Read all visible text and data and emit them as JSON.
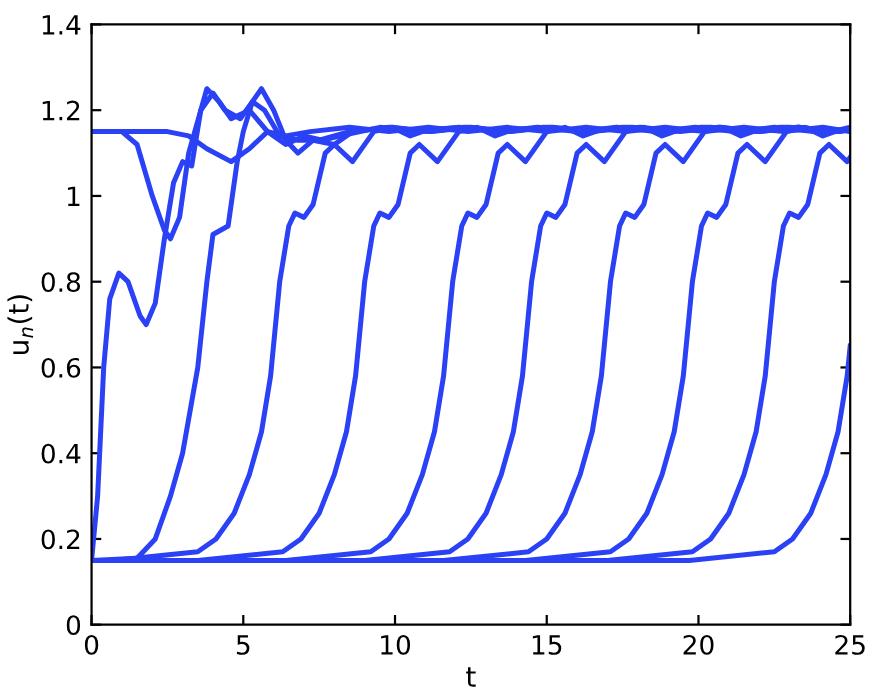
{
  "chart_data": {
    "type": "line",
    "xlabel": "t",
    "ylabel": "u$_{n}$(t)",
    "xlim": [
      0,
      25
    ],
    "ylim": [
      0,
      1.4
    ],
    "xticks": [
      0,
      5,
      10,
      15,
      20,
      25
    ],
    "yticks": [
      0,
      0.2,
      0.4,
      0.6,
      0.8,
      1,
      1.2,
      1.4
    ],
    "grid": false,
    "legend": false,
    "marker": "none",
    "line_style": "solid",
    "series": [
      {
        "color": "#2b41f5",
        "x": [
          0,
          1.0,
          1.5,
          2.0,
          2.4,
          2.6,
          2.9,
          3.2,
          3.6,
          4.0,
          4.4,
          4.9,
          5.3,
          5.7,
          6.2,
          6.8,
          7.5,
          8.5,
          9.8,
          11.1,
          12.4,
          13.7,
          15.0,
          16.3,
          17.6,
          18.9,
          20.2,
          21.5,
          22.8,
          24.1,
          25
        ],
        "values": [
          1.15,
          1.15,
          1.12,
          1.0,
          0.92,
          0.9,
          0.95,
          1.1,
          1.2,
          1.24,
          1.2,
          1.18,
          1.22,
          1.2,
          1.14,
          1.13,
          1.13,
          1.15,
          1.16,
          1.15,
          1.16,
          1.15,
          1.16,
          1.15,
          1.16,
          1.15,
          1.16,
          1.15,
          1.16,
          1.15,
          1.155
        ]
      },
      {
        "color": "#2b41f5",
        "x": [
          0,
          2.5,
          3.2,
          3.8,
          4.6,
          5.2,
          5.8,
          6.4,
          7.2,
          8.5,
          9.8,
          11.1,
          12.4,
          13.7,
          15.0,
          16.3,
          17.6,
          18.9,
          20.2,
          21.5,
          22.8,
          24.1,
          25
        ],
        "values": [
          1.15,
          1.15,
          1.14,
          1.11,
          1.08,
          1.11,
          1.15,
          1.14,
          1.15,
          1.16,
          1.15,
          1.16,
          1.15,
          1.16,
          1.15,
          1.16,
          1.15,
          1.16,
          1.15,
          1.16,
          1.15,
          1.16,
          1.15
        ]
      },
      {
        "color": "#2b41f5",
        "x": [
          0,
          0.2,
          0.4,
          0.6,
          0.9,
          1.2,
          1.6,
          1.8,
          2.1,
          2.4,
          2.7,
          3.0,
          3.3,
          3.6,
          3.8,
          4.2,
          4.6,
          5.2,
          5.8,
          6.4,
          7.0,
          7.6,
          8.2,
          9.5,
          10.8,
          12.1,
          13.4,
          14.7,
          16.0,
          17.3,
          18.6,
          19.9,
          21.2,
          22.5,
          23.8,
          25
        ],
        "values": [
          0.15,
          0.3,
          0.6,
          0.76,
          0.82,
          0.8,
          0.72,
          0.7,
          0.75,
          0.9,
          1.03,
          1.08,
          1.07,
          1.2,
          1.25,
          1.22,
          1.18,
          1.2,
          1.15,
          1.12,
          1.14,
          1.13,
          1.14,
          1.16,
          1.15,
          1.16,
          1.15,
          1.16,
          1.15,
          1.16,
          1.15,
          1.16,
          1.15,
          1.16,
          1.15,
          1.155
        ]
      },
      {
        "color": "#2b41f5",
        "x": [
          0,
          1.5,
          2.1,
          2.6,
          3.0,
          3.5,
          3.8,
          4.0,
          4.5,
          4.8,
          5.0,
          5.3,
          5.6,
          6.0,
          6.4,
          6.8,
          7.3,
          8.0,
          8.6,
          9.9,
          11.2,
          12.5,
          13.8,
          15.1,
          16.4,
          17.7,
          19.0,
          20.3,
          21.6,
          22.9,
          24.2,
          25
        ],
        "values": [
          0.15,
          0.155,
          0.2,
          0.3,
          0.4,
          0.6,
          0.8,
          0.91,
          0.93,
          1.08,
          1.15,
          1.22,
          1.25,
          1.2,
          1.13,
          1.1,
          1.13,
          1.12,
          1.15,
          1.16,
          1.15,
          1.16,
          1.15,
          1.16,
          1.15,
          1.16,
          1.15,
          1.16,
          1.15,
          1.16,
          1.15,
          1.155
        ]
      },
      {
        "color": "#2b41f5",
        "x": [
          0,
          0.7,
          3.5,
          4.1,
          4.7,
          5.2,
          5.6,
          5.9,
          6.2,
          6.5,
          6.7,
          7.0,
          7.3,
          7.7,
          8.0,
          8.6,
          9.3,
          9.9,
          10.5,
          11.1,
          12.3,
          13.6,
          14.9,
          16.2,
          17.5,
          18.8,
          20.1,
          21.4,
          22.7,
          24.0,
          25
        ],
        "values": [
          0.15,
          0.15,
          0.17,
          0.2,
          0.26,
          0.35,
          0.45,
          0.58,
          0.8,
          0.93,
          0.96,
          0.95,
          0.98,
          1.1,
          1.12,
          1.08,
          1.15,
          1.16,
          1.14,
          1.155,
          1.16,
          1.15,
          1.16,
          1.15,
          1.16,
          1.15,
          1.16,
          1.15,
          1.16,
          1.15,
          1.155
        ]
      },
      {
        "color": "#2b41f5",
        "x": [
          0,
          3.5,
          6.3,
          6.9,
          7.5,
          8.0,
          8.4,
          8.7,
          9.0,
          9.3,
          9.5,
          9.8,
          10.1,
          10.5,
          10.8,
          11.4,
          12.1,
          12.7,
          13.3,
          13.9,
          15.2,
          16.5,
          17.8,
          19.1,
          20.4,
          21.7,
          23.0,
          24.3,
          25
        ],
        "values": [
          0.15,
          0.15,
          0.17,
          0.2,
          0.26,
          0.35,
          0.45,
          0.58,
          0.8,
          0.93,
          0.96,
          0.95,
          0.98,
          1.1,
          1.12,
          1.08,
          1.15,
          1.16,
          1.14,
          1.155,
          1.16,
          1.15,
          1.16,
          1.15,
          1.16,
          1.15,
          1.16,
          1.15,
          1.155
        ]
      },
      {
        "color": "#2b41f5",
        "x": [
          0,
          6.4,
          9.2,
          9.8,
          10.4,
          10.9,
          11.3,
          11.6,
          11.9,
          12.2,
          12.4,
          12.7,
          13.0,
          13.4,
          13.7,
          14.3,
          15.0,
          15.6,
          16.2,
          16.8,
          18.1,
          19.4,
          20.7,
          22.0,
          23.3,
          24.6,
          25
        ],
        "values": [
          0.15,
          0.15,
          0.17,
          0.2,
          0.26,
          0.35,
          0.45,
          0.58,
          0.8,
          0.93,
          0.96,
          0.95,
          0.98,
          1.1,
          1.12,
          1.08,
          1.15,
          1.16,
          1.14,
          1.155,
          1.16,
          1.15,
          1.16,
          1.15,
          1.16,
          1.15,
          1.155
        ]
      },
      {
        "color": "#2b41f5",
        "x": [
          0,
          9.0,
          11.8,
          12.4,
          13.0,
          13.5,
          13.9,
          14.2,
          14.5,
          14.8,
          15.0,
          15.3,
          15.6,
          16.0,
          16.3,
          16.9,
          17.6,
          18.2,
          18.8,
          19.4,
          20.7,
          22.0,
          23.3,
          24.6,
          25
        ],
        "values": [
          0.15,
          0.15,
          0.17,
          0.2,
          0.26,
          0.35,
          0.45,
          0.58,
          0.8,
          0.93,
          0.96,
          0.95,
          0.98,
          1.1,
          1.12,
          1.08,
          1.15,
          1.16,
          1.14,
          1.155,
          1.16,
          1.15,
          1.16,
          1.15,
          1.155
        ]
      },
      {
        "color": "#2b41f5",
        "x": [
          0,
          11.6,
          14.4,
          15.0,
          15.6,
          16.1,
          16.5,
          16.8,
          17.1,
          17.4,
          17.6,
          17.9,
          18.2,
          18.6,
          18.9,
          19.5,
          20.2,
          20.8,
          21.4,
          22.0,
          23.3,
          24.6,
          25
        ],
        "values": [
          0.15,
          0.15,
          0.17,
          0.2,
          0.26,
          0.35,
          0.45,
          0.58,
          0.8,
          0.93,
          0.96,
          0.95,
          0.98,
          1.1,
          1.12,
          1.08,
          1.15,
          1.16,
          1.14,
          1.155,
          1.16,
          1.15,
          1.155
        ]
      },
      {
        "color": "#2b41f5",
        "x": [
          0,
          14.3,
          17.1,
          17.7,
          18.3,
          18.8,
          19.2,
          19.5,
          19.8,
          20.1,
          20.3,
          20.6,
          20.9,
          21.3,
          21.6,
          22.2,
          22.9,
          23.5,
          24.1,
          24.7,
          25
        ],
        "values": [
          0.15,
          0.15,
          0.17,
          0.2,
          0.26,
          0.35,
          0.45,
          0.58,
          0.8,
          0.93,
          0.96,
          0.95,
          0.98,
          1.1,
          1.12,
          1.08,
          1.15,
          1.16,
          1.14,
          1.155,
          1.16
        ]
      },
      {
        "color": "#2b41f5",
        "x": [
          0,
          17.0,
          19.8,
          20.4,
          21.0,
          21.5,
          21.9,
          22.2,
          22.5,
          22.8,
          23.0,
          23.3,
          23.6,
          24.0,
          24.3,
          24.9,
          25
        ],
        "values": [
          0.15,
          0.15,
          0.17,
          0.2,
          0.26,
          0.35,
          0.45,
          0.58,
          0.8,
          0.93,
          0.96,
          0.95,
          0.98,
          1.1,
          1.12,
          1.08,
          1.09
        ]
      },
      {
        "color": "#2b41f5",
        "x": [
          0,
          19.7,
          22.5,
          23.1,
          23.7,
          24.2,
          24.6,
          24.9,
          25
        ],
        "values": [
          0.15,
          0.15,
          0.17,
          0.2,
          0.26,
          0.35,
          0.45,
          0.58,
          0.65
        ]
      }
    ]
  }
}
